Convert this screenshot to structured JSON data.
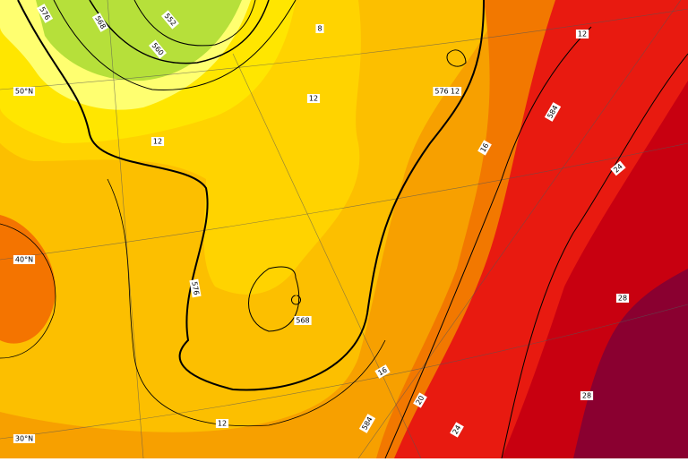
{
  "map": {
    "contour_labels": [
      576,
      568,
      552,
      560,
      8,
      12,
      12,
      576,
      12,
      12,
      584,
      16,
      24,
      576,
      568,
      28,
      28,
      16,
      20,
      584,
      24,
      12
    ],
    "latitude_labels": [
      "50°N",
      "40°N",
      "30°N"
    ]
  }
}
